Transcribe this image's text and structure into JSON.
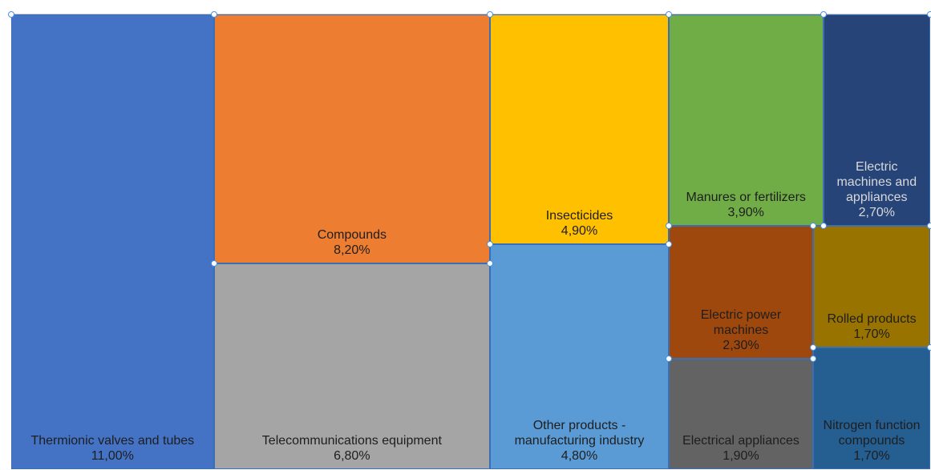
{
  "chart_data": {
    "type": "treemap",
    "categories": [
      "Thermionic valves and tubes",
      "Compounds",
      "Telecommunications equipment",
      "Insecticides",
      "Other products - manufacturing industry",
      "Manures or fertilizers",
      "Electric machines and appliances",
      "Electric power machines",
      "Electrical appliances",
      "Rolled products",
      "Nitrogen function compounds"
    ],
    "values": [
      11,
      8.2,
      6.8,
      4.9,
      4.8,
      3.9,
      2.7,
      2.3,
      1.9,
      1.7,
      1.7
    ],
    "value_labels": [
      "11,00%",
      "8,20%",
      "6,80%",
      "4,90%",
      "4,80%",
      "3,90%",
      "2,70%",
      "2,30%",
      "1,90%",
      "1,70%",
      "1,70%"
    ],
    "colors": [
      "#4472c4",
      "#ed7d31",
      "#a5a5a5",
      "#ffc000",
      "#5b9bd5",
      "#70ad47",
      "#264478",
      "#9e480e",
      "#636363",
      "#997300",
      "#255e91"
    ]
  }
}
